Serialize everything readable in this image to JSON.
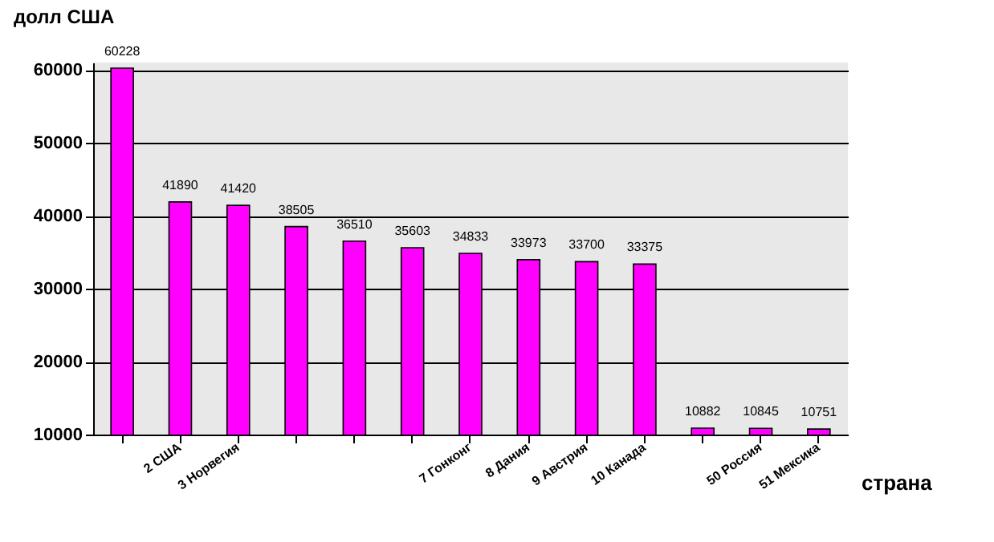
{
  "chart_data": {
    "type": "bar",
    "ylabel": "долл США",
    "xlabel": "страна",
    "categories": [
      null,
      "2 США",
      "3 Норвегия",
      null,
      null,
      null,
      "7 Гонконг",
      "8 Дания",
      "9 Австрия",
      "10 Канада",
      null,
      "50 Россия",
      "51 Мексика"
    ],
    "values": [
      60228,
      41890,
      41420,
      38505,
      36510,
      35603,
      34833,
      33973,
      33700,
      33375,
      10882,
      10845,
      10751
    ],
    "color": "#ff00ff",
    "ylim": [
      10000,
      61000
    ],
    "yticks": [
      10000,
      20000,
      30000,
      40000,
      50000,
      60000
    ],
    "grid": "y",
    "data_labels": true
  }
}
